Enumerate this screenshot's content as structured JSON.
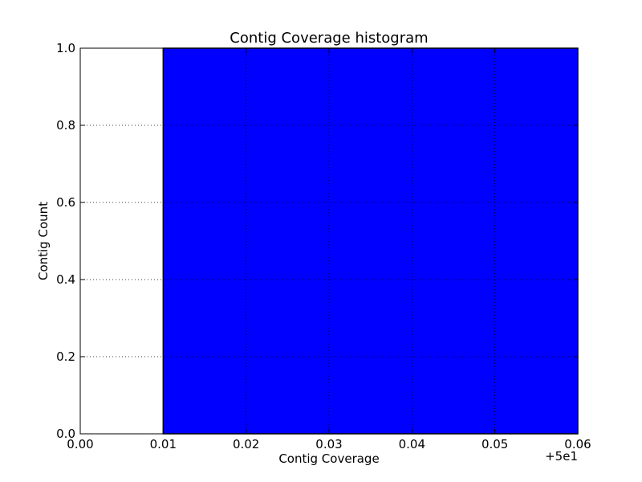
{
  "chart_data": {
    "type": "bar",
    "title": "Contig Coverage histogram",
    "xlabel": "Contig Coverage",
    "ylabel": "Contig Count",
    "x_offset_label": "+5e1",
    "xlim": [
      0.0,
      0.06
    ],
    "ylim": [
      0.0,
      1.0
    ],
    "x_ticks": [
      0.0,
      0.01,
      0.02,
      0.03,
      0.04,
      0.05,
      0.06
    ],
    "x_tick_labels": [
      "0.00",
      "0.01",
      "0.02",
      "0.03",
      "0.04",
      "0.05",
      "0.06"
    ],
    "y_ticks": [
      0.0,
      0.2,
      0.4,
      0.6,
      0.8,
      1.0
    ],
    "y_tick_labels": [
      "0.0",
      "0.2",
      "0.4",
      "0.6",
      "0.8",
      "1.0"
    ],
    "grid": true,
    "grid_style": "dotted",
    "bars": [
      {
        "x_start": 0.01,
        "x_end": 0.06,
        "value": 1.0
      }
    ],
    "colors": {
      "bar_fill": "#0000ff",
      "bar_edge": "#000000",
      "axes": "#000000",
      "grid": "#000000"
    }
  }
}
